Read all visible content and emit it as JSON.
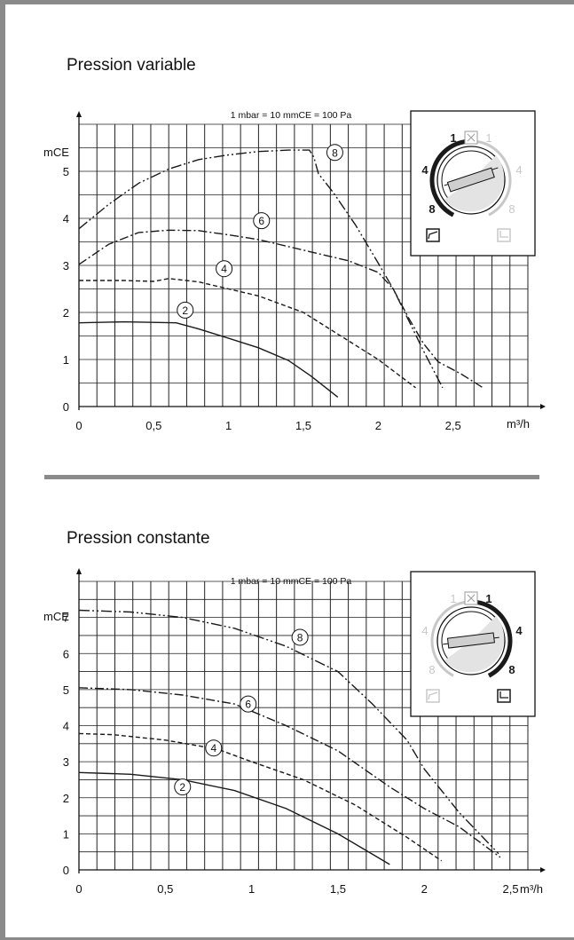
{
  "colors": {
    "frame": "#8a8a8a",
    "curve": "#1a1a1a",
    "dial_inactive": "#c8c8c8",
    "dial_active": "#1a1a1a"
  },
  "chart_data": [
    {
      "type": "line",
      "title": "Pression variable",
      "subtitle": "1 mbar = 10 mmCE = 100 Pa",
      "xlabel": "m³/h",
      "ylabel": "mCE",
      "xlim": [
        0,
        3
      ],
      "ylim": [
        0,
        6
      ],
      "x_ticks": [
        "0",
        "0,5",
        "1",
        "1,5",
        "2",
        "2,5"
      ],
      "x_tick_values": [
        0,
        0.5,
        1,
        1.5,
        2,
        2.5
      ],
      "y_ticks": [
        "0",
        "1",
        "2",
        "3",
        "4",
        "5"
      ],
      "y_tick_values": [
        0,
        1,
        2,
        3,
        4,
        5
      ],
      "grid": true,
      "series": [
        {
          "name": "2",
          "style": "solid",
          "label_at": [
            0.71,
            2.05
          ],
          "points": [
            [
              0,
              1.78
            ],
            [
              0.3,
              1.8
            ],
            [
              0.65,
              1.78
            ],
            [
              0.8,
              1.65
            ],
            [
              1.0,
              1.45
            ],
            [
              1.2,
              1.25
            ],
            [
              1.4,
              0.98
            ],
            [
              1.55,
              0.65
            ],
            [
              1.73,
              0.2
            ]
          ]
        },
        {
          "name": "4",
          "style": "dashed",
          "label_at": [
            0.97,
            2.93
          ],
          "points": [
            [
              0,
              2.68
            ],
            [
              0.3,
              2.68
            ],
            [
              0.5,
              2.66
            ],
            [
              0.6,
              2.72
            ],
            [
              0.8,
              2.65
            ],
            [
              1.0,
              2.5
            ],
            [
              1.2,
              2.35
            ],
            [
              1.5,
              2.0
            ],
            [
              1.7,
              1.6
            ],
            [
              2.0,
              1.0
            ],
            [
              2.25,
              0.4
            ]
          ]
        },
        {
          "name": "6",
          "style": "dash-dot",
          "label_at": [
            1.22,
            3.95
          ],
          "points": [
            [
              0,
              3.02
            ],
            [
              0.2,
              3.45
            ],
            [
              0.4,
              3.7
            ],
            [
              0.6,
              3.75
            ],
            [
              0.8,
              3.74
            ],
            [
              1.0,
              3.65
            ],
            [
              1.2,
              3.55
            ],
            [
              1.4,
              3.4
            ],
            [
              1.6,
              3.25
            ],
            [
              1.8,
              3.1
            ],
            [
              2.0,
              2.85
            ],
            [
              2.1,
              2.5
            ],
            [
              2.2,
              1.9
            ],
            [
              2.3,
              1.35
            ],
            [
              2.4,
              0.95
            ],
            [
              2.55,
              0.7
            ],
            [
              2.7,
              0.4
            ]
          ]
        },
        {
          "name": "8",
          "style": "dash-dot-dot",
          "label_at": [
            1.71,
            5.4
          ],
          "points": [
            [
              0,
              3.78
            ],
            [
              0.2,
              4.3
            ],
            [
              0.4,
              4.75
            ],
            [
              0.6,
              5.05
            ],
            [
              0.8,
              5.25
            ],
            [
              1.0,
              5.35
            ],
            [
              1.2,
              5.42
            ],
            [
              1.4,
              5.45
            ],
            [
              1.54,
              5.45
            ],
            [
              1.57,
              5.3
            ],
            [
              1.6,
              4.95
            ],
            [
              1.7,
              4.55
            ],
            [
              1.85,
              3.85
            ],
            [
              2.0,
              3.05
            ],
            [
              2.1,
              2.5
            ],
            [
              2.2,
              1.85
            ],
            [
              2.3,
              1.2
            ],
            [
              2.43,
              0.4
            ]
          ]
        }
      ],
      "control": {
        "labels_active": [
          "1",
          "4",
          "8"
        ],
        "labels_inactive": [
          "1",
          "4",
          "8"
        ],
        "mode_active": "left",
        "icons": [
          "variable-pressure-icon",
          "constant-pressure-icon"
        ]
      }
    },
    {
      "type": "line",
      "title": "Pression constante",
      "subtitle": "1 mbar = 10 mmCE = 100 Pa",
      "xlabel": "m³/h",
      "ylabel": "mCE",
      "xlim": [
        0,
        2.6
      ],
      "ylim": [
        0,
        8
      ],
      "x_ticks": [
        "0",
        "0,5",
        "1",
        "1,5",
        "2",
        "2,5"
      ],
      "x_tick_values": [
        0,
        0.5,
        1,
        1.5,
        2,
        2.5
      ],
      "y_ticks": [
        "0",
        "1",
        "2",
        "3",
        "4",
        "5",
        "6",
        "7"
      ],
      "y_tick_values": [
        0,
        1,
        2,
        3,
        4,
        5,
        6,
        7
      ],
      "grid": true,
      "series": [
        {
          "name": "2",
          "style": "solid",
          "label_at": [
            0.6,
            2.3
          ],
          "points": [
            [
              0,
              2.7
            ],
            [
              0.3,
              2.65
            ],
            [
              0.6,
              2.5
            ],
            [
              0.9,
              2.2
            ],
            [
              1.2,
              1.7
            ],
            [
              1.5,
              1.0
            ],
            [
              1.8,
              0.15
            ]
          ]
        },
        {
          "name": "4",
          "style": "dashed",
          "label_at": [
            0.78,
            3.38
          ],
          "points": [
            [
              0,
              3.78
            ],
            [
              0.2,
              3.75
            ],
            [
              0.5,
              3.6
            ],
            [
              0.8,
              3.35
            ],
            [
              1.0,
              3.0
            ],
            [
              1.3,
              2.5
            ],
            [
              1.6,
              1.8
            ],
            [
              1.9,
              0.9
            ],
            [
              2.1,
              0.25
            ]
          ]
        },
        {
          "name": "6",
          "style": "dash-dot",
          "label_at": [
            0.98,
            4.6
          ],
          "points": [
            [
              0,
              5.05
            ],
            [
              0.3,
              5.0
            ],
            [
              0.6,
              4.85
            ],
            [
              0.9,
              4.6
            ],
            [
              1.2,
              4.0
            ],
            [
              1.5,
              3.3
            ],
            [
              1.8,
              2.3
            ],
            [
              2.0,
              1.7
            ],
            [
              2.2,
              1.2
            ],
            [
              2.44,
              0.35
            ]
          ]
        },
        {
          "name": "8",
          "style": "dash-dot-dot",
          "label_at": [
            1.28,
            6.45
          ],
          "points": [
            [
              0,
              7.2
            ],
            [
              0.3,
              7.15
            ],
            [
              0.6,
              7.0
            ],
            [
              0.9,
              6.7
            ],
            [
              1.2,
              6.2
            ],
            [
              1.5,
              5.5
            ],
            [
              1.7,
              4.6
            ],
            [
              1.9,
              3.6
            ],
            [
              2.0,
              2.8
            ],
            [
              2.2,
              1.6
            ],
            [
              2.43,
              0.45
            ]
          ]
        }
      ],
      "control": {
        "labels_active": [
          "1",
          "4",
          "8"
        ],
        "labels_inactive": [
          "1",
          "4",
          "8"
        ],
        "mode_active": "right",
        "icons": [
          "variable-pressure-icon",
          "constant-pressure-icon"
        ]
      }
    }
  ]
}
